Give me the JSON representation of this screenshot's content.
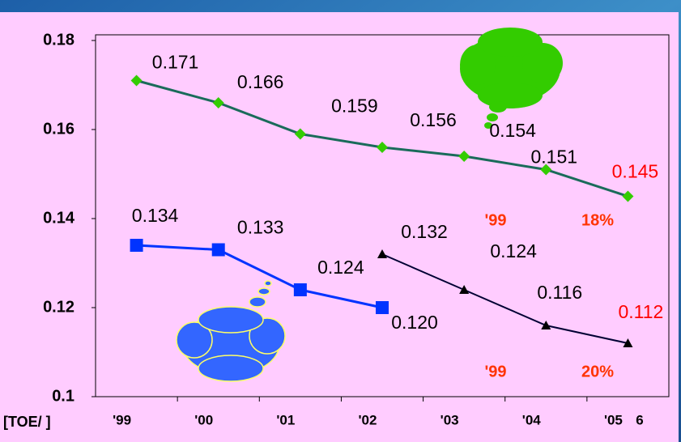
{
  "chart_data": {
    "type": "line",
    "categories": [
      "'99",
      "'00",
      "'01",
      "'02",
      "'03",
      "'04",
      "'05"
    ],
    "x_note": "6",
    "y_label": "[TOE/ ]",
    "ylim": [
      0.1,
      0.18
    ],
    "yticks": [
      0.1,
      0.12,
      0.14,
      0.16,
      0.18
    ],
    "grid": false,
    "series": [
      {
        "color": "#1a6b5a",
        "marker_color": "#33cc00",
        "marker": "diamond",
        "last_label_color": "#ff0000",
        "values": [
          0.171,
          0.166,
          0.159,
          0.156,
          0.154,
          0.151,
          0.145
        ],
        "value_labels": [
          "0.171",
          "0.166",
          "0.159",
          "0.156",
          "0.154",
          "0.151",
          "0.145"
        ]
      },
      {
        "color": "#0033ff",
        "marker_color": "#0033ff",
        "marker": "square",
        "values": [
          0.134,
          0.133,
          0.124,
          0.12,
          null,
          null,
          null
        ],
        "value_labels": [
          "0.134",
          "0.133",
          "0.124",
          "0.120",
          null,
          null,
          null
        ]
      },
      {
        "color": "#000033",
        "marker_color": "#000000",
        "marker": "triangle",
        "last_label_color": "#ff0000",
        "values": [
          null,
          null,
          null,
          0.132,
          0.124,
          0.116,
          0.112
        ],
        "value_labels": [
          null,
          null,
          null,
          "0.132",
          "0.124",
          "0.116",
          "0.112"
        ]
      }
    ],
    "annotations": [
      {
        "text": "'99",
        "color": "#ff3300"
      },
      {
        "text": "18%",
        "color": "#ff3300"
      },
      {
        "text": "'99",
        "color": "#ff3300"
      },
      {
        "text": "20%",
        "color": "#ff3300"
      }
    ]
  }
}
